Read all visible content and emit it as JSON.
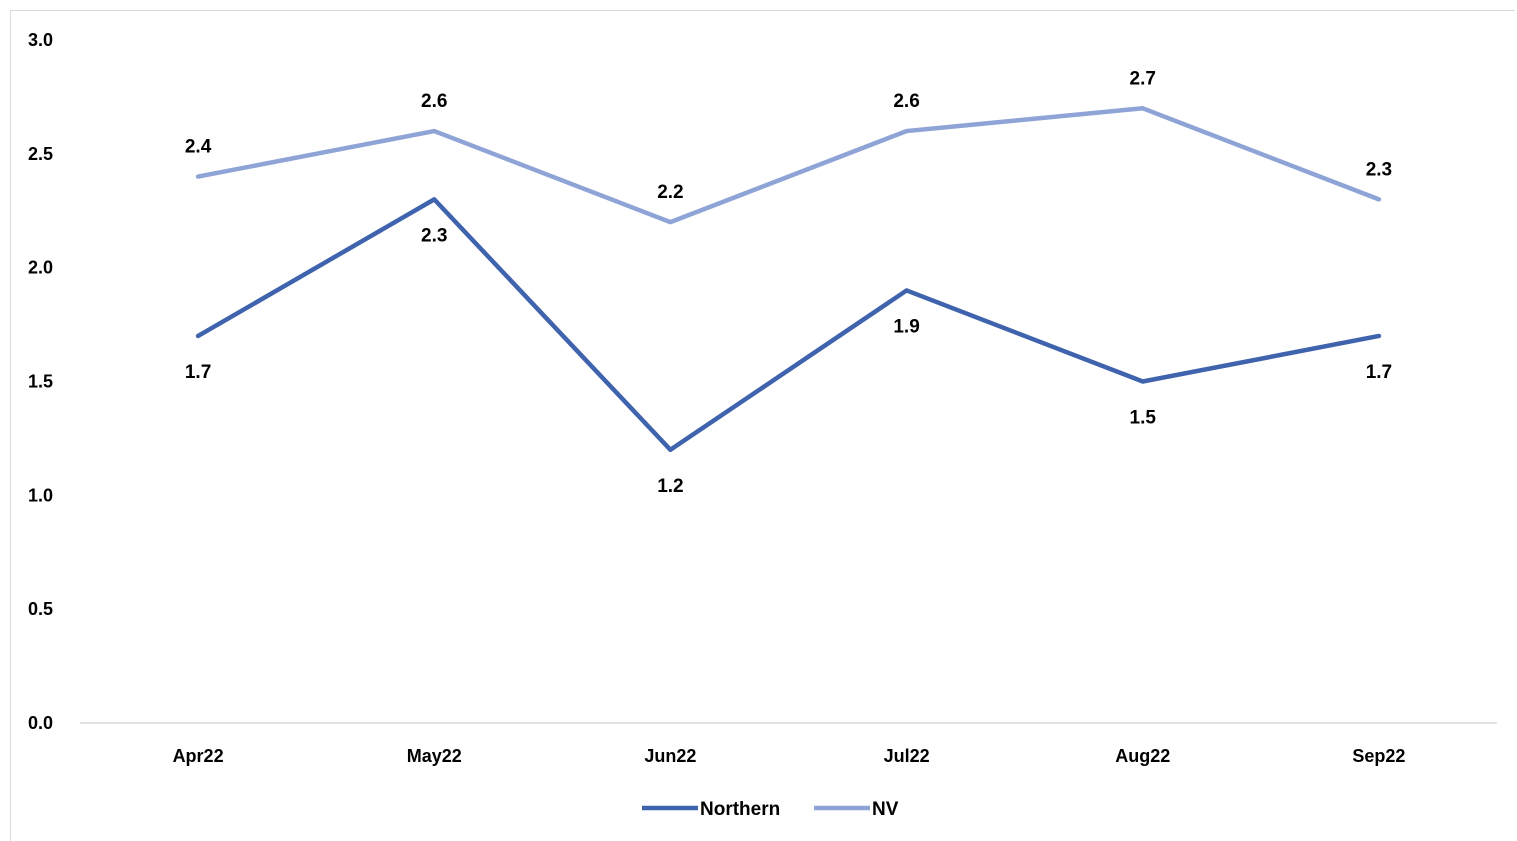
{
  "chart_data": {
    "type": "line",
    "title": "",
    "xlabel": "",
    "ylabel": "",
    "categories": [
      "Apr22",
      "May22",
      "Jun22",
      "Jul22",
      "Aug22",
      "Sep22"
    ],
    "ylim": [
      0,
      3.0
    ],
    "yticks": [
      "0.0",
      "0.5",
      "1.0",
      "1.5",
      "2.0",
      "2.5",
      "3.0"
    ],
    "grid": false,
    "legend_position": "bottom",
    "series": [
      {
        "name": "Northern",
        "color": "#3f63ad",
        "values": [
          1.7,
          2.3,
          1.2,
          1.9,
          1.5,
          1.7
        ],
        "labels": [
          "1.7",
          "2.3",
          "1.2",
          "1.9",
          "1.5",
          "1.7"
        ],
        "label_position": "below"
      },
      {
        "name": "NV",
        "color": "#8fa4d6",
        "values": [
          2.4,
          2.6,
          2.2,
          2.6,
          2.7,
          2.3
        ],
        "labels": [
          "2.4",
          "2.6",
          "2.2",
          "2.6",
          "2.7",
          "2.3"
        ],
        "label_position": "above"
      }
    ]
  }
}
